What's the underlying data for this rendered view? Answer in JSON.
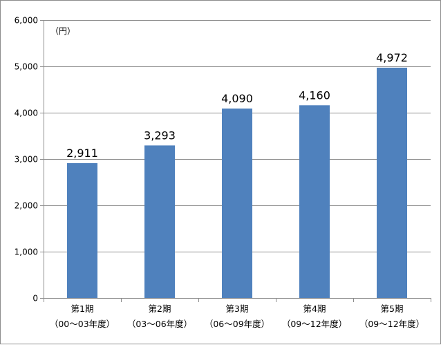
{
  "chart_data": {
    "type": "bar",
    "title": "",
    "unit_label": "（円）",
    "xlabel": "",
    "ylabel": "",
    "categories": [
      [
        "第1期",
        "（00～03年度）"
      ],
      [
        "第2期",
        "（03～06年度）"
      ],
      [
        "第3期",
        "（06～09年度）"
      ],
      [
        "第4期",
        "（09～12年度）"
      ],
      [
        "第5期",
        "（09～12年度）"
      ]
    ],
    "values": [
      2911,
      3293,
      4090,
      4160,
      4972
    ],
    "value_labels": [
      "2,911",
      "3,293",
      "4,090",
      "4,160",
      "4,972"
    ],
    "ylim": [
      0,
      6000
    ],
    "yticks": [
      0,
      1000,
      2000,
      3000,
      4000,
      5000,
      6000
    ],
    "ytick_labels": [
      "0",
      "1,000",
      "2,000",
      "3,000",
      "4,000",
      "5,000",
      "6,000"
    ],
    "grid": true,
    "legend": "none",
    "bar_color": "#4f81bd",
    "grid_color": "#8c8c8c"
  }
}
